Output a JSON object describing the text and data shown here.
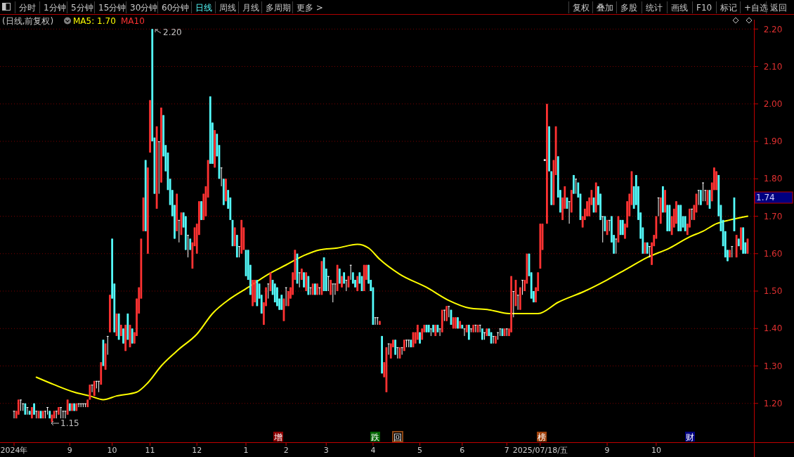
{
  "chart_data": {
    "type": "candlestick",
    "categories": [
      "2024年",
      null,
      null,
      null,
      null,
      null,
      null,
      null,
      null,
      null,
      null,
      null,
      null,
      null,
      null,
      null,
      null,
      null,
      null,
      null,
      null,
      null,
      null,
      null,
      null,
      "9",
      null,
      null,
      null,
      null,
      null,
      null,
      null,
      null,
      null,
      null,
      null,
      null,
      null,
      null,
      null,
      null,
      null,
      null,
      "10",
      null,
      null,
      null,
      null,
      null,
      null,
      null,
      null,
      null,
      null,
      null,
      null,
      null,
      null,
      null,
      null,
      "11",
      null,
      null,
      null,
      null,
      null,
      null,
      null,
      null,
      null,
      null,
      null,
      null,
      null,
      null,
      null,
      null,
      null,
      null,
      null,
      null,
      "12",
      null,
      null,
      null,
      null,
      null,
      null,
      null,
      null,
      null,
      null,
      null,
      null,
      null,
      null,
      null,
      null,
      null,
      null,
      null,
      null,
      null,
      "1",
      null,
      null,
      null,
      null,
      null,
      null,
      null,
      null,
      null,
      null,
      null,
      null,
      null,
      null,
      null,
      null,
      null,
      "2",
      null,
      null,
      null,
      null,
      null,
      null,
      null,
      null,
      null,
      null,
      null,
      null,
      null,
      null,
      null,
      null,
      null,
      "3",
      null,
      null,
      null,
      null,
      null,
      null,
      null,
      null,
      null,
      null,
      null,
      null,
      null,
      null,
      null,
      null,
      null,
      null,
      null,
      null,
      "4",
      null,
      null,
      null,
      null,
      null,
      null,
      null,
      null,
      null,
      null,
      null,
      null,
      null,
      null,
      null,
      null,
      null,
      null,
      null,
      null,
      "5",
      null,
      null,
      null,
      null,
      null,
      null,
      null,
      null,
      null,
      null,
      null,
      null,
      null,
      null,
      null,
      null,
      null,
      null,
      "6",
      null,
      null,
      null,
      null,
      null,
      null,
      null,
      null,
      null,
      null,
      null,
      null,
      null,
      null,
      null,
      null,
      null,
      null,
      null,
      "7",
      null,
      null,
      null,
      null,
      null,
      null,
      null,
      null,
      null,
      null,
      null,
      null,
      null,
      null,
      "2025/07/18/五",
      null,
      null,
      null,
      null,
      null,
      null,
      null,
      null,
      null,
      null,
      null,
      null,
      null,
      null,
      null,
      null,
      null,
      null,
      null,
      null,
      null,
      null,
      null,
      null,
      null,
      null,
      null,
      null,
      null,
      "9",
      null,
      null,
      null,
      null,
      null,
      null,
      null,
      null,
      null,
      null,
      null,
      null,
      null,
      null,
      null,
      null,
      null,
      null,
      null,
      null,
      null,
      "10",
      null,
      null,
      null,
      null,
      null,
      null,
      null,
      null,
      null,
      null,
      null,
      null,
      null,
      null,
      null,
      null,
      null,
      null,
      null,
      null,
      null,
      null,
      null,
      null,
      null,
      null,
      null,
      null,
      null,
      null,
      null,
      null,
      null,
      null,
      null,
      null,
      null,
      null,
      null,
      null,
      null
    ],
    "ohlc": [
      [
        1.18,
        1.18,
        1.16,
        1.18
      ],
      [
        1.16,
        1.18,
        1.16,
        1.18
      ],
      [
        1.17,
        1.21,
        1.17,
        1.21
      ],
      [
        1.21,
        1.21,
        1.18,
        1.21
      ],
      [
        1.2,
        1.2,
        1.18,
        1.2
      ],
      [
        1.2,
        1.2,
        1.17,
        1.17
      ],
      [
        1.19,
        1.19,
        1.17,
        1.19
      ],
      [
        1.18,
        1.18,
        1.17,
        1.17
      ],
      [
        1.16,
        1.19,
        1.16,
        1.19
      ],
      [
        1.2,
        1.2,
        1.17,
        1.17
      ],
      [
        1.18,
        1.18,
        1.16,
        1.18
      ],
      [
        1.16,
        1.18,
        1.16,
        1.18
      ],
      [
        1.18,
        1.18,
        1.16,
        1.16
      ],
      [
        1.16,
        1.18,
        1.16,
        1.18
      ],
      [
        1.18,
        1.18,
        1.16,
        1.18
      ],
      [
        1.19,
        1.19,
        1.17,
        1.19
      ],
      [
        1.18,
        1.18,
        1.16,
        1.16
      ],
      [
        1.15,
        1.17,
        1.15,
        1.17
      ],
      [
        1.16,
        1.18,
        1.16,
        1.18
      ],
      [
        1.18,
        1.18,
        1.16,
        1.18
      ],
      [
        1.17,
        1.19,
        1.17,
        1.19
      ],
      [
        1.19,
        1.19,
        1.16,
        1.19
      ],
      [
        1.18,
        1.18,
        1.16,
        1.18
      ],
      [
        1.18,
        1.18,
        1.16,
        1.18
      ],
      [
        1.17,
        1.21,
        1.17,
        1.21
      ],
      [
        1.2,
        1.2,
        1.18,
        1.18
      ],
      [
        1.18,
        1.2,
        1.18,
        1.2
      ],
      [
        1.2,
        1.2,
        1.18,
        1.18
      ],
      [
        1.18,
        1.2,
        1.18,
        1.2
      ],
      [
        1.2,
        1.2,
        1.19,
        1.2
      ],
      [
        1.2,
        1.2,
        1.19,
        1.2
      ],
      [
        1.2,
        1.2,
        1.19,
        1.2
      ],
      [
        1.2,
        1.2,
        1.19,
        1.2
      ],
      [
        1.19,
        1.21,
        1.19,
        1.21
      ],
      [
        1.21,
        1.25,
        1.21,
        1.25
      ],
      [
        1.25,
        1.25,
        1.23,
        1.25
      ],
      [
        1.22,
        1.26,
        1.22,
        1.26
      ],
      [
        1.26,
        1.26,
        1.24,
        1.26
      ],
      [
        1.26,
        1.26,
        1.23,
        1.26
      ],
      [
        1.25,
        1.31,
        1.25,
        1.31
      ],
      [
        1.37,
        1.37,
        1.3,
        1.3
      ],
      [
        1.29,
        1.36,
        1.29,
        1.36
      ],
      [
        1.38,
        1.38,
        1.33,
        1.38
      ],
      [
        1.39,
        1.49,
        1.39,
        1.49
      ],
      [
        1.64,
        1.64,
        1.48,
        1.48
      ],
      [
        1.52,
        1.52,
        1.39,
        1.39
      ],
      [
        1.38,
        1.44,
        1.38,
        1.44
      ],
      [
        1.44,
        1.44,
        1.37,
        1.37
      ],
      [
        1.38,
        1.41,
        1.38,
        1.41
      ],
      [
        1.4,
        1.4,
        1.36,
        1.36
      ],
      [
        1.34,
        1.41,
        1.34,
        1.41
      ],
      [
        1.44,
        1.44,
        1.37,
        1.37
      ],
      [
        1.35,
        1.41,
        1.35,
        1.41
      ],
      [
        1.4,
        1.4,
        1.36,
        1.36
      ],
      [
        1.36,
        1.39,
        1.36,
        1.39
      ],
      [
        1.38,
        1.48,
        1.38,
        1.48
      ],
      [
        1.44,
        1.51,
        1.44,
        1.51
      ],
      [
        1.48,
        1.64,
        1.48,
        1.64
      ],
      [
        1.66,
        1.75,
        1.66,
        1.75
      ],
      [
        1.85,
        1.85,
        1.66,
        1.66
      ],
      [
        1.6,
        1.83,
        1.6,
        1.83
      ],
      [
        1.87,
        2.01,
        1.87,
        2.01
      ],
      [
        2.2,
        2.2,
        1.9,
        1.9
      ],
      [
        1.91,
        1.91,
        1.76,
        1.76
      ],
      [
        1.72,
        1.94,
        1.72,
        1.94
      ],
      [
        1.9,
        1.9,
        1.76,
        1.9
      ],
      [
        1.79,
        1.99,
        1.79,
        1.99
      ],
      [
        1.97,
        1.97,
        1.86,
        1.86
      ],
      [
        1.89,
        1.89,
        1.82,
        1.82
      ],
      [
        1.87,
        1.87,
        1.77,
        1.77
      ],
      [
        1.8,
        1.8,
        1.73,
        1.73
      ],
      [
        1.77,
        1.77,
        1.7,
        1.7
      ],
      [
        1.73,
        1.73,
        1.64,
        1.64
      ],
      [
        1.66,
        1.76,
        1.66,
        1.76
      ],
      [
        1.69,
        1.69,
        1.63,
        1.69
      ],
      [
        1.65,
        1.71,
        1.65,
        1.71
      ],
      [
        1.71,
        1.71,
        1.67,
        1.67
      ],
      [
        1.7,
        1.7,
        1.61,
        1.61
      ],
      [
        1.65,
        1.65,
        1.59,
        1.65
      ],
      [
        1.64,
        1.64,
        1.61,
        1.61
      ],
      [
        1.56,
        1.63,
        1.56,
        1.63
      ],
      [
        1.62,
        1.67,
        1.62,
        1.67
      ],
      [
        1.6,
        1.68,
        1.6,
        1.68
      ],
      [
        1.65,
        1.74,
        1.65,
        1.74
      ],
      [
        1.74,
        1.74,
        1.69,
        1.69
      ],
      [
        1.69,
        1.76,
        1.69,
        1.76
      ],
      [
        1.7,
        1.78,
        1.7,
        1.78
      ],
      [
        1.75,
        1.85,
        1.75,
        1.85
      ],
      [
        2.02,
        2.02,
        1.84,
        1.84
      ],
      [
        1.95,
        1.95,
        1.84,
        1.84
      ],
      [
        1.83,
        1.93,
        1.83,
        1.93
      ],
      [
        1.92,
        1.92,
        1.86,
        1.86
      ],
      [
        1.89,
        1.89,
        1.8,
        1.8
      ],
      [
        1.83,
        1.83,
        1.78,
        1.83
      ],
      [
        1.8,
        1.8,
        1.73,
        1.73
      ],
      [
        1.74,
        1.8,
        1.74,
        1.8
      ],
      [
        1.77,
        1.77,
        1.72,
        1.72
      ],
      [
        1.75,
        1.75,
        1.69,
        1.69
      ],
      [
        1.69,
        1.69,
        1.62,
        1.62
      ],
      [
        1.62,
        1.67,
        1.62,
        1.67
      ],
      [
        1.65,
        1.65,
        1.59,
        1.59
      ],
      [
        1.62,
        1.62,
        1.59,
        1.62
      ],
      [
        1.6,
        1.69,
        1.6,
        1.69
      ],
      [
        1.61,
        1.67,
        1.61,
        1.67
      ],
      [
        1.61,
        1.61,
        1.54,
        1.54
      ],
      [
        1.61,
        1.61,
        1.53,
        1.53
      ],
      [
        1.57,
        1.57,
        1.49,
        1.49
      ],
      [
        1.46,
        1.53,
        1.46,
        1.53
      ],
      [
        1.47,
        1.53,
        1.47,
        1.53
      ],
      [
        1.53,
        1.53,
        1.46,
        1.46
      ],
      [
        1.52,
        1.52,
        1.48,
        1.48
      ],
      [
        1.49,
        1.49,
        1.44,
        1.44
      ],
      [
        1.41,
        1.47,
        1.41,
        1.47
      ],
      [
        1.46,
        1.51,
        1.46,
        1.51
      ],
      [
        1.52,
        1.52,
        1.48,
        1.52
      ],
      [
        1.5,
        1.55,
        1.5,
        1.55
      ],
      [
        1.53,
        1.53,
        1.49,
        1.49
      ],
      [
        1.52,
        1.52,
        1.47,
        1.47
      ],
      [
        1.51,
        1.51,
        1.46,
        1.46
      ],
      [
        1.48,
        1.48,
        1.45,
        1.45
      ],
      [
        1.49,
        1.49,
        1.45,
        1.45
      ],
      [
        1.42,
        1.48,
        1.42,
        1.48
      ],
      [
        1.51,
        1.51,
        1.46,
        1.51
      ],
      [
        1.46,
        1.5,
        1.46,
        1.5
      ],
      [
        1.48,
        1.51,
        1.48,
        1.51
      ],
      [
        1.49,
        1.55,
        1.49,
        1.55
      ],
      [
        1.53,
        1.61,
        1.53,
        1.61
      ],
      [
        1.6,
        1.6,
        1.52,
        1.52
      ],
      [
        1.55,
        1.55,
        1.51,
        1.55
      ],
      [
        1.53,
        1.56,
        1.53,
        1.56
      ],
      [
        1.55,
        1.55,
        1.51,
        1.51
      ],
      [
        1.5,
        1.55,
        1.5,
        1.55
      ],
      [
        1.54,
        1.54,
        1.49,
        1.49
      ],
      [
        1.51,
        1.51,
        1.49,
        1.51
      ],
      [
        1.49,
        1.52,
        1.49,
        1.52
      ],
      [
        1.52,
        1.52,
        1.49,
        1.49
      ],
      [
        1.49,
        1.52,
        1.49,
        1.52
      ],
      [
        1.51,
        1.51,
        1.49,
        1.51
      ],
      [
        1.49,
        1.58,
        1.49,
        1.58
      ],
      [
        1.59,
        1.59,
        1.5,
        1.5
      ],
      [
        1.56,
        1.56,
        1.5,
        1.5
      ],
      [
        1.54,
        1.54,
        1.5,
        1.54
      ],
      [
        1.49,
        1.53,
        1.49,
        1.53
      ],
      [
        1.52,
        1.52,
        1.47,
        1.52
      ],
      [
        1.52,
        1.52,
        1.49,
        1.52
      ],
      [
        1.5,
        1.57,
        1.5,
        1.57
      ],
      [
        1.56,
        1.56,
        1.52,
        1.52
      ],
      [
        1.51,
        1.54,
        1.51,
        1.54
      ],
      [
        1.55,
        1.55,
        1.52,
        1.52
      ],
      [
        1.53,
        1.53,
        1.5,
        1.53
      ],
      [
        1.51,
        1.54,
        1.51,
        1.54
      ],
      [
        1.57,
        1.57,
        1.53,
        1.57
      ],
      [
        1.55,
        1.55,
        1.52,
        1.52
      ],
      [
        1.53,
        1.53,
        1.51,
        1.51
      ],
      [
        1.5,
        1.54,
        1.5,
        1.54
      ],
      [
        1.55,
        1.55,
        1.52,
        1.52
      ],
      [
        1.54,
        1.54,
        1.5,
        1.5
      ],
      [
        1.5,
        1.57,
        1.5,
        1.57
      ],
      [
        1.53,
        1.57,
        1.53,
        1.57
      ],
      [
        1.57,
        1.57,
        1.52,
        1.52
      ],
      [
        1.53,
        1.53,
        1.5,
        1.5
      ],
      [
        1.51,
        1.51,
        1.41,
        1.41
      ],
      [
        1.43,
        1.43,
        1.41,
        1.43
      ],
      [
        1.43,
        1.43,
        1.41,
        1.43
      ],
      [
        1.41,
        1.42,
        1.41,
        1.42
      ],
      [
        1.38,
        1.38,
        1.28,
        1.28
      ],
      [
        1.27,
        1.31,
        1.27,
        1.31
      ],
      [
        1.23,
        1.35,
        1.23,
        1.35
      ],
      [
        1.36,
        1.36,
        1.33,
        1.36
      ],
      [
        1.32,
        1.36,
        1.32,
        1.36
      ],
      [
        1.35,
        1.37,
        1.35,
        1.37
      ],
      [
        1.37,
        1.37,
        1.33,
        1.33
      ],
      [
        1.35,
        1.35,
        1.32,
        1.35
      ],
      [
        1.32,
        1.35,
        1.32,
        1.35
      ],
      [
        1.35,
        1.35,
        1.33,
        1.35
      ],
      [
        1.34,
        1.37,
        1.34,
        1.37
      ],
      [
        1.37,
        1.37,
        1.35,
        1.37
      ],
      [
        1.37,
        1.37,
        1.35,
        1.37
      ],
      [
        1.37,
        1.37,
        1.35,
        1.35
      ],
      [
        1.35,
        1.39,
        1.35,
        1.39
      ],
      [
        1.36,
        1.39,
        1.36,
        1.39
      ],
      [
        1.37,
        1.41,
        1.37,
        1.41
      ],
      [
        1.39,
        1.39,
        1.36,
        1.36
      ],
      [
        1.37,
        1.4,
        1.37,
        1.4
      ],
      [
        1.39,
        1.41,
        1.39,
        1.41
      ],
      [
        1.41,
        1.41,
        1.39,
        1.39
      ],
      [
        1.41,
        1.41,
        1.39,
        1.39
      ],
      [
        1.4,
        1.4,
        1.38,
        1.4
      ],
      [
        1.41,
        1.41,
        1.39,
        1.39
      ],
      [
        1.38,
        1.41,
        1.38,
        1.41
      ],
      [
        1.41,
        1.41,
        1.39,
        1.39
      ],
      [
        1.4,
        1.4,
        1.38,
        1.4
      ],
      [
        1.39,
        1.45,
        1.39,
        1.45
      ],
      [
        1.45,
        1.45,
        1.42,
        1.45
      ],
      [
        1.42,
        1.46,
        1.42,
        1.46
      ],
      [
        1.46,
        1.46,
        1.43,
        1.46
      ],
      [
        1.45,
        1.45,
        1.41,
        1.41
      ],
      [
        1.4,
        1.43,
        1.4,
        1.43
      ],
      [
        1.4,
        1.43,
        1.4,
        1.43
      ],
      [
        1.43,
        1.43,
        1.4,
        1.4
      ],
      [
        1.4,
        1.42,
        1.4,
        1.42
      ],
      [
        1.41,
        1.41,
        1.4,
        1.4
      ],
      [
        1.4,
        1.4,
        1.38,
        1.4
      ],
      [
        1.39,
        1.41,
        1.39,
        1.41
      ],
      [
        1.41,
        1.41,
        1.37,
        1.37
      ],
      [
        1.4,
        1.4,
        1.39,
        1.4
      ],
      [
        1.39,
        1.41,
        1.39,
        1.41
      ],
      [
        1.41,
        1.41,
        1.39,
        1.41
      ],
      [
        1.39,
        1.41,
        1.39,
        1.41
      ],
      [
        1.41,
        1.41,
        1.39,
        1.41
      ],
      [
        1.4,
        1.4,
        1.37,
        1.37
      ],
      [
        1.39,
        1.39,
        1.37,
        1.39
      ],
      [
        1.38,
        1.4,
        1.38,
        1.4
      ],
      [
        1.4,
        1.4,
        1.38,
        1.38
      ],
      [
        1.39,
        1.39,
        1.36,
        1.36
      ],
      [
        1.38,
        1.38,
        1.36,
        1.38
      ],
      [
        1.36,
        1.38,
        1.36,
        1.38
      ],
      [
        1.39,
        1.39,
        1.37,
        1.39
      ],
      [
        1.4,
        1.4,
        1.38,
        1.4
      ],
      [
        1.4,
        1.4,
        1.38,
        1.38
      ],
      [
        1.38,
        1.4,
        1.38,
        1.4
      ],
      [
        1.4,
        1.4,
        1.38,
        1.4
      ],
      [
        1.38,
        1.4,
        1.38,
        1.4
      ],
      [
        1.39,
        1.54,
        1.39,
        1.54
      ],
      [
        1.5,
        1.5,
        1.43,
        1.5
      ],
      [
        1.46,
        1.53,
        1.46,
        1.53
      ],
      [
        1.49,
        1.49,
        1.45,
        1.49
      ],
      [
        1.45,
        1.51,
        1.45,
        1.51
      ],
      [
        1.53,
        1.53,
        1.49,
        1.53
      ],
      [
        1.5,
        1.53,
        1.5,
        1.53
      ],
      [
        1.52,
        1.6,
        1.52,
        1.6
      ],
      [
        1.6,
        1.6,
        1.54,
        1.54
      ],
      [
        1.55,
        1.55,
        1.48,
        1.48
      ],
      [
        1.5,
        1.5,
        1.47,
        1.47
      ],
      [
        1.47,
        1.51,
        1.47,
        1.51
      ],
      [
        1.5,
        1.55,
        1.5,
        1.55
      ],
      [
        1.56,
        1.68,
        1.56,
        1.68
      ],
      [
        1.61,
        1.68,
        1.61,
        1.68
      ],
      [
        1.85,
        1.85,
        1.85,
        1.85
      ],
      [
        1.68,
        2.0,
        1.68,
        2.0
      ],
      [
        1.94,
        1.94,
        1.82,
        1.82
      ],
      [
        1.82,
        1.82,
        1.73,
        1.73
      ],
      [
        1.73,
        1.85,
        1.73,
        1.85
      ],
      [
        1.81,
        1.94,
        1.81,
        1.94
      ],
      [
        1.86,
        1.86,
        1.75,
        1.75
      ],
      [
        1.77,
        1.77,
        1.71,
        1.71
      ],
      [
        1.69,
        1.75,
        1.69,
        1.75
      ],
      [
        1.72,
        1.78,
        1.72,
        1.78
      ],
      [
        1.75,
        1.75,
        1.72,
        1.72
      ],
      [
        1.74,
        1.74,
        1.68,
        1.74
      ],
      [
        1.71,
        1.77,
        1.71,
        1.77
      ],
      [
        1.81,
        1.81,
        1.76,
        1.76
      ],
      [
        1.8,
        1.8,
        1.76,
        1.8
      ],
      [
        1.79,
        1.79,
        1.75,
        1.75
      ],
      [
        1.76,
        1.76,
        1.69,
        1.69
      ],
      [
        1.67,
        1.7,
        1.67,
        1.7
      ],
      [
        1.69,
        1.72,
        1.69,
        1.72
      ],
      [
        1.7,
        1.74,
        1.7,
        1.74
      ],
      [
        1.7,
        1.75,
        1.7,
        1.75
      ],
      [
        1.73,
        1.77,
        1.73,
        1.77
      ],
      [
        1.75,
        1.75,
        1.71,
        1.71
      ],
      [
        1.71,
        1.79,
        1.71,
        1.79
      ],
      [
        1.78,
        1.78,
        1.73,
        1.73
      ],
      [
        1.76,
        1.76,
        1.69,
        1.69
      ],
      [
        1.7,
        1.7,
        1.63,
        1.7
      ],
      [
        1.7,
        1.7,
        1.66,
        1.66
      ],
      [
        1.65,
        1.69,
        1.65,
        1.69
      ],
      [
        1.69,
        1.69,
        1.66,
        1.69
      ],
      [
        1.7,
        1.7,
        1.63,
        1.63
      ],
      [
        1.65,
        1.65,
        1.6,
        1.6
      ],
      [
        1.64,
        1.64,
        1.6,
        1.64
      ],
      [
        1.63,
        1.7,
        1.63,
        1.7
      ],
      [
        1.69,
        1.69,
        1.65,
        1.65
      ],
      [
        1.69,
        1.69,
        1.65,
        1.65
      ],
      [
        1.64,
        1.68,
        1.64,
        1.68
      ],
      [
        1.67,
        1.74,
        1.67,
        1.74
      ],
      [
        1.7,
        1.76,
        1.7,
        1.76
      ],
      [
        1.73,
        1.82,
        1.73,
        1.82
      ],
      [
        1.78,
        1.78,
        1.72,
        1.72
      ],
      [
        1.81,
        1.81,
        1.73,
        1.73
      ],
      [
        1.78,
        1.78,
        1.69,
        1.69
      ],
      [
        1.71,
        1.71,
        1.64,
        1.64
      ],
      [
        1.67,
        1.67,
        1.6,
        1.6
      ],
      [
        1.6,
        1.63,
        1.6,
        1.63
      ],
      [
        1.63,
        1.63,
        1.6,
        1.6
      ],
      [
        1.62,
        1.62,
        1.59,
        1.62
      ],
      [
        1.57,
        1.63,
        1.57,
        1.63
      ],
      [
        1.62,
        1.65,
        1.62,
        1.65
      ],
      [
        1.64,
        1.7,
        1.64,
        1.7
      ],
      [
        1.75,
        1.75,
        1.7,
        1.75
      ],
      [
        1.68,
        1.75,
        1.68,
        1.75
      ],
      [
        1.78,
        1.78,
        1.71,
        1.71
      ],
      [
        1.71,
        1.77,
        1.71,
        1.77
      ],
      [
        1.73,
        1.73,
        1.66,
        1.66
      ],
      [
        1.73,
        1.73,
        1.66,
        1.66
      ],
      [
        1.65,
        1.7,
        1.65,
        1.7
      ],
      [
        1.67,
        1.72,
        1.67,
        1.72
      ],
      [
        1.68,
        1.74,
        1.68,
        1.74
      ],
      [
        1.73,
        1.73,
        1.66,
        1.66
      ],
      [
        1.73,
        1.73,
        1.66,
        1.66
      ],
      [
        1.7,
        1.7,
        1.67,
        1.67
      ],
      [
        1.7,
        1.7,
        1.66,
        1.66
      ],
      [
        1.65,
        1.68,
        1.65,
        1.68
      ],
      [
        1.67,
        1.72,
        1.67,
        1.72
      ],
      [
        1.72,
        1.72,
        1.69,
        1.72
      ],
      [
        1.69,
        1.73,
        1.69,
        1.73
      ],
      [
        1.71,
        1.76,
        1.71,
        1.76
      ],
      [
        1.77,
        1.77,
        1.73,
        1.77
      ],
      [
        1.77,
        1.77,
        1.73,
        1.73
      ],
      [
        1.79,
        1.79,
        1.74,
        1.79
      ],
      [
        1.77,
        1.77,
        1.74,
        1.77
      ],
      [
        1.73,
        1.77,
        1.73,
        1.77
      ],
      [
        1.77,
        1.77,
        1.72,
        1.72
      ],
      [
        1.74,
        1.79,
        1.74,
        1.79
      ],
      [
        1.77,
        1.83,
        1.77,
        1.83
      ],
      [
        1.77,
        1.82,
        1.77,
        1.82
      ],
      [
        1.81,
        1.81,
        1.7,
        1.7
      ],
      [
        1.73,
        1.73,
        1.66,
        1.66
      ],
      [
        1.69,
        1.69,
        1.62,
        1.62
      ],
      [
        1.66,
        1.66,
        1.59,
        1.59
      ],
      [
        1.61,
        1.61,
        1.58,
        1.58
      ],
      [
        1.59,
        1.61,
        1.59,
        1.61
      ],
      [
        1.62,
        1.62,
        1.59,
        1.62
      ],
      [
        1.75,
        1.75,
        1.66,
        1.66
      ],
      [
        1.59,
        1.65,
        1.59,
        1.65
      ],
      [
        1.64,
        1.64,
        1.62,
        1.62
      ],
      [
        1.61,
        1.67,
        1.61,
        1.67
      ],
      [
        1.67,
        1.67,
        1.6,
        1.6
      ],
      [
        1.63,
        1.63,
        1.6,
        1.6
      ],
      [
        1.6,
        1.64,
        1.6,
        1.64
      ]
    ],
    "colors": [
      "#ffffff",
      "#ff3232",
      "#ff3232",
      "#ffffff",
      "#ffffff",
      "#54fcfc",
      "#ffffff",
      "#54fcfc",
      "#ff3232",
      "#54fcfc",
      "#ffffff",
      "#ff3232",
      "#54fcfc",
      "#ff3232",
      "#ffffff",
      "#ffffff",
      "#54fcfc",
      "#ff3232",
      "#ff3232",
      "#ffffff",
      "#ff3232",
      "#ffffff",
      "#ffffff",
      "#ffffff",
      "#ff3232",
      "#54fcfc",
      "#ff3232",
      "#54fcfc",
      "#ff3232",
      "#ffffff",
      "#ffffff",
      "#ffffff",
      "#ffffff",
      "#ff3232",
      "#ff3232",
      "#ffffff",
      "#ff3232",
      "#ffffff",
      "#ffffff",
      "#ff3232",
      "#54fcfc",
      "#ff3232",
      "#ffffff",
      "#ff3232",
      "#54fcfc",
      "#54fcfc",
      "#ff3232",
      "#54fcfc",
      "#ff3232",
      "#54fcfc",
      "#ff3232",
      "#54fcfc",
      "#ff3232",
      "#54fcfc",
      "#ff3232",
      "#ff3232",
      "#ff3232",
      "#ff3232",
      "#ff3232",
      "#54fcfc",
      "#ff3232",
      "#ff3232",
      "#54fcfc",
      "#54fcfc",
      "#ff3232",
      "#ffffff",
      "#ff3232",
      "#54fcfc",
      "#54fcfc",
      "#54fcfc",
      "#54fcfc",
      "#54fcfc",
      "#54fcfc",
      "#ff3232",
      "#ffffff",
      "#ff3232",
      "#54fcfc",
      "#54fcfc",
      "#ffffff",
      "#54fcfc",
      "#ff3232",
      "#ff3232",
      "#ff3232",
      "#ff3232",
      "#54fcfc",
      "#ff3232",
      "#ff3232",
      "#ff3232",
      "#54fcfc",
      "#54fcfc",
      "#ff3232",
      "#54fcfc",
      "#54fcfc",
      "#ffffff",
      "#54fcfc",
      "#ff3232",
      "#54fcfc",
      "#54fcfc",
      "#54fcfc",
      "#ff3232",
      "#54fcfc",
      "#ffffff",
      "#ff3232",
      "#ff3232",
      "#54fcfc",
      "#54fcfc",
      "#54fcfc",
      "#ff3232",
      "#ff3232",
      "#54fcfc",
      "#54fcfc",
      "#54fcfc",
      "#ff3232",
      "#ff3232",
      "#ffffff",
      "#ff3232",
      "#54fcfc",
      "#54fcfc",
      "#54fcfc",
      "#54fcfc",
      "#54fcfc",
      "#ff3232",
      "#ffffff",
      "#ff3232",
      "#ff3232",
      "#ff3232",
      "#ff3232",
      "#54fcfc",
      "#ffffff",
      "#ff3232",
      "#54fcfc",
      "#ff3232",
      "#54fcfc",
      "#ffffff",
      "#ff3232",
      "#54fcfc",
      "#ff3232",
      "#ffffff",
      "#ff3232",
      "#54fcfc",
      "#54fcfc",
      "#ffffff",
      "#ff3232",
      "#ffffff",
      "#ffffff",
      "#ff3232",
      "#54fcfc",
      "#ff3232",
      "#54fcfc",
      "#ffffff",
      "#ff3232",
      "#ffffff",
      "#54fcfc",
      "#54fcfc",
      "#ff3232",
      "#54fcfc",
      "#54fcfc",
      "#ff3232",
      "#ff3232",
      "#54fcfc",
      "#54fcfc",
      "#54fcfc",
      "#ffffff",
      "#ffffff",
      "#ff3232",
      "#54fcfc",
      "#ff3232",
      "#ff3232",
      "#ffffff",
      "#ff3232",
      "#ff3232",
      "#54fcfc",
      "#ffffff",
      "#ff3232",
      "#ffffff",
      "#ff3232",
      "#ffffff",
      "#ffffff",
      "#54fcfc",
      "#ff3232",
      "#ff3232",
      "#ff3232",
      "#54fcfc",
      "#ff3232",
      "#ff3232",
      "#54fcfc",
      "#54fcfc",
      "#ffffff",
      "#54fcfc",
      "#ff3232",
      "#54fcfc",
      "#ffffff",
      "#ff3232",
      "#ffffff",
      "#ff3232",
      "#ffffff",
      "#54fcfc",
      "#ff3232",
      "#ff3232",
      "#54fcfc",
      "#ff3232",
      "#54fcfc",
      "#ffffff",
      "#ff3232",
      "#54fcfc",
      "#ffffff",
      "#ff3232",
      "#ffffff",
      "#ff3232",
      "#ffffff",
      "#54fcfc",
      "#ffffff",
      "#ff3232",
      "#54fcfc",
      "#54fcfc",
      "#ffffff",
      "#ff3232",
      "#ffffff",
      "#ffffff",
      "#54fcfc",
      "#ff3232",
      "#ffffff",
      "#ff3232",
      "#ff3232",
      "#ffffff",
      "#ff3232",
      "#ffffff",
      "#ff3232",
      "#ffffff",
      "#ff3232",
      "#ff3232",
      "#54fcfc",
      "#54fcfc",
      "#54fcfc",
      "#ff3232",
      "#ff3232",
      "#ff3232",
      "#ff3232",
      "#ffffff",
      "#ff3232",
      "#54fcfc",
      "#54fcfc",
      "#ff3232",
      "#ff3232",
      "#54fcfc",
      "#54fcfc",
      "#ff3232",
      "#ff3232",
      "#54fcfc",
      "#ffffff",
      "#ff3232",
      "#54fcfc",
      "#ffffff",
      "#54fcfc",
      "#54fcfc",
      "#ff3232",
      "#ff3232",
      "#ff3232",
      "#ff3232",
      "#ff3232",
      "#54fcfc",
      "#ff3232",
      "#54fcfc",
      "#54fcfc",
      "#ffffff",
      "#54fcfc",
      "#ff3232",
      "#ffffff",
      "#54fcfc",
      "#54fcfc",
      "#ffffff",
      "#ff3232",
      "#54fcfc",
      "#54fcfc",
      "#ff3232",
      "#ff3232",
      "#ff3232",
      "#ff3232",
      "#54fcfc",
      "#54fcfc",
      "#54fcfc",
      "#54fcfc",
      "#54fcfc",
      "#ff3232",
      "#54fcfc",
      "#ffffff",
      "#ff3232",
      "#ff3232",
      "#ff3232",
      "#ffffff",
      "#ff3232",
      "#54fcfc",
      "#ff3232",
      "#54fcfc",
      "#54fcfc",
      "#ff3232",
      "#ff3232",
      "#ff3232",
      "#54fcfc",
      "#54fcfc",
      "#54fcfc",
      "#54fcfc",
      "#ff3232",
      "#ff3232",
      "#ffffff",
      "#ff3232",
      "#ff3232",
      "#ffffff",
      "#54fcfc",
      "#ffffff",
      "#ffffff",
      "#ff3232",
      "#54fcfc",
      "#ff3232",
      "#ff3232",
      "#ff3232",
      "#54fcfc",
      "#54fcfc",
      "#54fcfc",
      "#54fcfc",
      "#54fcfc",
      "#ff3232",
      "#ffffff",
      "#54fcfc",
      "#ff3232",
      "#54fcfc",
      "#ff3232",
      "#54fcfc",
      "#54fcfc",
      "#ff3232"
    ],
    "series": [
      {
        "name": "MA5: 1.70",
        "type": "line",
        "color": "#ffff00",
        "values": [
          null,
          null,
          null,
          null,
          null,
          null,
          null,
          null,
          null,
          null,
          1.27,
          null,
          null,
          null,
          null,
          null,
          null,
          null,
          1.25,
          null,
          null,
          null,
          null,
          null,
          null,
          null,
          null,
          1.23,
          null,
          null,
          null,
          null,
          null,
          null,
          1.22,
          null,
          null,
          null,
          null,
          null,
          1.21,
          null,
          null,
          null,
          null,
          null,
          1.22,
          null,
          null,
          null,
          null,
          null,
          null,
          null,
          null,
          1.23,
          null,
          null,
          null,
          null,
          1.255,
          null,
          null,
          null,
          null,
          null,
          1.3,
          null,
          null,
          null,
          null,
          null,
          null,
          null,
          1.345,
          null,
          null,
          null,
          null,
          null,
          null,
          null,
          1.385,
          null,
          null,
          null,
          null,
          null,
          null,
          1.44,
          null,
          null,
          null,
          null,
          null,
          null,
          null,
          1.48,
          null,
          null,
          null,
          null,
          null,
          null,
          null,
          1.51,
          null,
          null,
          null,
          null,
          null,
          null,
          null,
          null,
          1.545,
          null,
          null,
          null,
          null,
          null,
          null,
          null,
          1.57,
          null,
          null,
          null,
          null,
          null,
          null,
          null,
          1.595,
          null,
          null,
          null,
          null,
          null,
          null,
          1.61,
          null,
          null,
          null,
          null,
          null,
          null,
          null,
          1.615,
          null,
          null,
          null,
          null,
          null,
          null,
          null,
          null,
          1.625,
          null,
          null,
          null,
          null,
          1.615,
          null,
          null,
          null,
          null,
          1.585,
          null,
          null,
          null,
          null,
          null,
          null,
          null,
          null,
          1.545,
          null,
          null,
          null,
          null,
          null,
          null,
          null,
          null,
          null,
          null,
          null,
          1.51,
          null,
          null,
          null,
          null,
          null,
          null,
          null,
          null,
          null,
          1.475,
          null,
          null,
          null,
          null,
          null,
          null,
          null,
          null,
          1.455,
          null,
          null,
          null,
          null,
          null,
          null,
          null,
          null,
          1.45,
          null,
          null,
          null,
          null,
          null,
          null,
          null,
          null,
          1.44,
          null,
          null,
          null,
          null,
          null,
          null,
          null,
          null,
          null,
          null,
          null,
          null,
          1.44,
          null,
          null,
          null,
          null,
          null,
          null,
          null,
          null,
          1.47,
          null,
          null,
          null,
          null,
          null,
          null,
          null,
          null,
          null,
          null,
          null,
          1.5,
          null,
          null,
          null,
          null,
          null,
          null,
          null,
          null,
          null,
          1.53,
          null,
          null,
          null,
          null,
          null,
          null,
          null,
          null,
          1.56,
          null,
          null,
          null,
          null,
          null,
          null,
          null,
          null,
          1.59,
          null,
          null,
          null,
          null,
          null,
          null,
          null,
          null,
          null,
          1.615,
          null,
          null,
          null,
          null,
          null,
          null,
          null,
          null,
          1.645,
          null,
          null,
          null,
          null,
          null,
          1.66,
          null,
          null,
          null,
          null,
          null,
          1.68,
          null,
          null,
          null,
          null,
          null,
          1.69,
          null,
          null,
          null,
          null,
          null,
          null,
          null,
          1.7
        ]
      }
    ],
    "ylim": [
      1.1,
      2.225
    ],
    "yticks": [
      {
        "value": 1.2,
        "label": "1.20"
      },
      {
        "value": 1.3,
        "label": "1.30"
      },
      {
        "value": 1.4,
        "label": "1.40"
      },
      {
        "value": 1.5,
        "label": "1.50"
      },
      {
        "value": 1.6,
        "label": "1.60"
      },
      {
        "value": 1.7,
        "label": "1.70"
      },
      {
        "value": 1.8,
        "label": "1.80"
      },
      {
        "value": 1.9,
        "label": "1.90"
      },
      {
        "value": 2.0,
        "label": "2.00"
      },
      {
        "value": 2.1,
        "label": "2.10"
      },
      {
        "value": 2.2,
        "label": "2.20"
      }
    ],
    "grid": "y",
    "legend": "top left",
    "annotations": [
      "分时",
      "1分钟",
      "5分钟",
      "15分钟",
      "30分钟",
      "60分钟",
      "日线",
      "周线",
      "月线",
      "多周期",
      "更多 >",
      "复权",
      "叠加",
      "多股",
      "统计",
      "画线",
      "F10",
      "标记",
      "+自选",
      "返回",
      "(日线,前复权)",
      "MA10",
      "增",
      "跌",
      "回",
      "榜",
      "财",
      "2.20",
      "1.15",
      "1.74"
    ]
  }
}
